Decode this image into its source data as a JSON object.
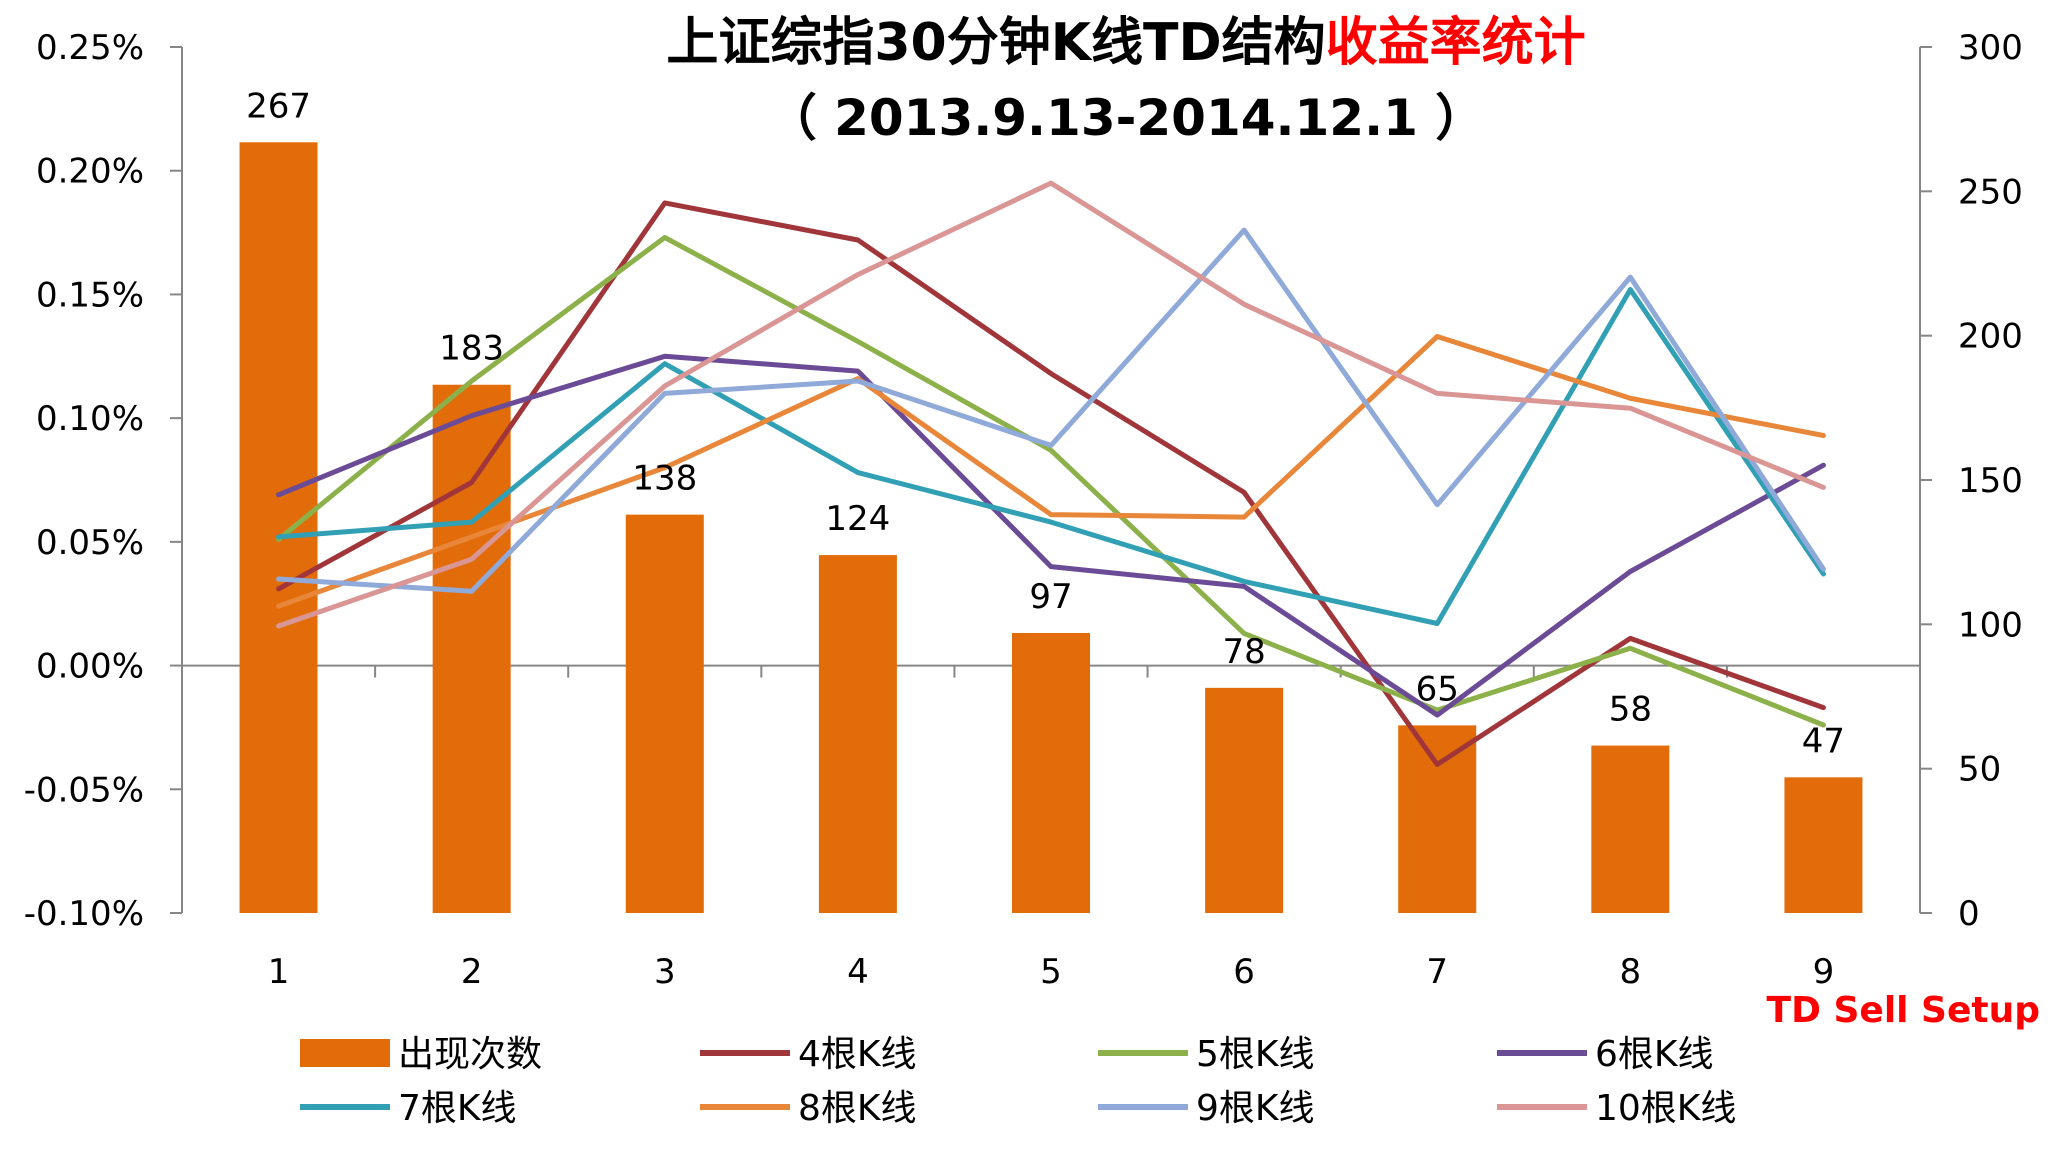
{
  "chart_data": {
    "type": "bar+line",
    "title": "上证综指30分钟K线TD结构",
    "title_highlight": "收益率统计",
    "subtitle": "（ 2013.9.13-2014.12.1 ）",
    "xlabel": "TD Sell Setup",
    "categories": [
      "1",
      "2",
      "3",
      "4",
      "5",
      "6",
      "7",
      "8",
      "9"
    ],
    "y_left": {
      "min": -0.1,
      "max": 0.25,
      "step": 0.05,
      "unit": "%",
      "ticks": [
        "0.25%",
        "0.20%",
        "0.15%",
        "0.10%",
        "0.05%",
        "0.00%",
        "-0.05%",
        "-0.10%"
      ]
    },
    "y_right": {
      "min": 0,
      "max": 300,
      "step": 50,
      "ticks": [
        "300",
        "250",
        "200",
        "150",
        "100",
        "50",
        "0"
      ]
    },
    "bars": {
      "name": "出现次数",
      "axis": "right",
      "color": "#E36C0A",
      "values": [
        267,
        183,
        138,
        124,
        97,
        78,
        65,
        58,
        47
      ],
      "labels": [
        "267",
        "183",
        "138",
        "124",
        "97",
        "78",
        "65",
        "58",
        "47"
      ]
    },
    "series": [
      {
        "name": "4根K线",
        "color": "#A0363A",
        "values": [
          0.031,
          0.074,
          0.187,
          0.172,
          0.118,
          0.07,
          -0.04,
          0.011,
          -0.017
        ]
      },
      {
        "name": "5根K线",
        "color": "#8DB14A",
        "values": [
          0.051,
          0.115,
          0.173,
          0.131,
          0.087,
          0.013,
          -0.018,
          0.007,
          -0.024
        ]
      },
      {
        "name": "6根K线",
        "color": "#6B4A96",
        "values": [
          0.069,
          0.101,
          0.125,
          0.119,
          0.04,
          0.032,
          -0.02,
          0.038,
          0.081
        ]
      },
      {
        "name": "7根K线",
        "color": "#31A0B5",
        "values": [
          0.052,
          0.058,
          0.122,
          0.078,
          0.058,
          0.034,
          0.017,
          0.152,
          0.037
        ]
      },
      {
        "name": "8根K线",
        "color": "#E8873A",
        "values": [
          0.024,
          0.052,
          0.08,
          0.116,
          0.061,
          0.06,
          0.133,
          0.108,
          0.093
        ]
      },
      {
        "name": "9根K线",
        "color": "#8FA9D8",
        "values": [
          0.035,
          0.03,
          0.11,
          0.115,
          0.089,
          0.176,
          0.065,
          0.157,
          0.039
        ]
      },
      {
        "name": "10根K线",
        "color": "#D99694",
        "values": [
          0.016,
          0.043,
          0.113,
          0.158,
          0.195,
          0.146,
          0.11,
          0.104,
          0.072
        ]
      }
    ],
    "legend_position": "bottom",
    "grid": false
  }
}
